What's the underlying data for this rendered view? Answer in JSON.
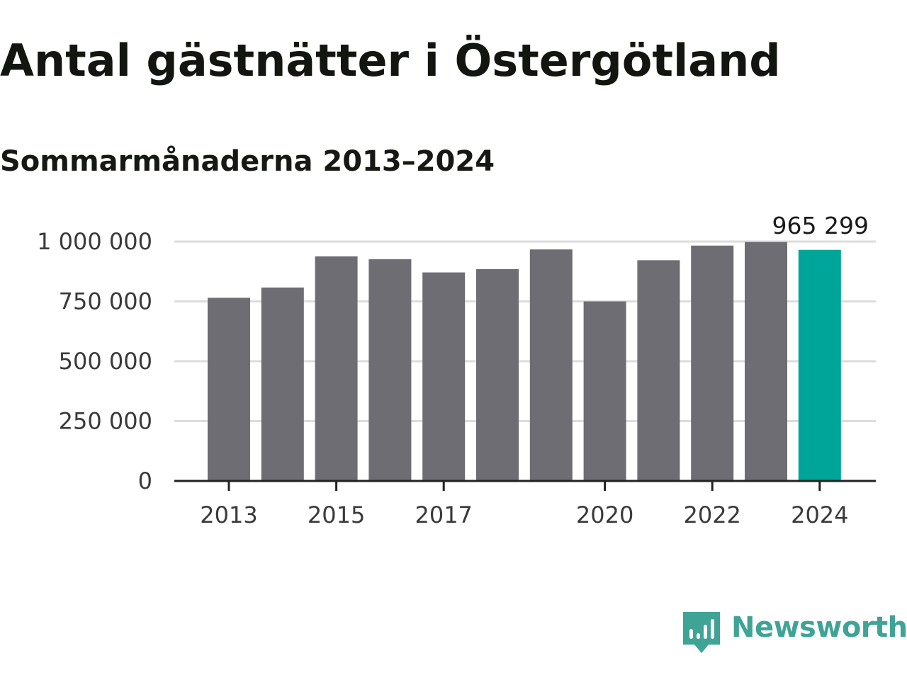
{
  "header": {
    "title": "Antal gästnätter i Östergötland",
    "subtitle": "Sommarmånaderna 2013–2024"
  },
  "brand": {
    "name": "Newsworthy",
    "icon": "bar-chart-speech-bubble-icon",
    "color": "#3fa396"
  },
  "colors": {
    "bar": "#6e6d73",
    "highlight": "#00a59a",
    "grid": "#dcdcdc",
    "axis": "#222222"
  },
  "chart_data": {
    "type": "bar",
    "categories": [
      "2013",
      "2014",
      "2015",
      "2016",
      "2017",
      "2018",
      "2019",
      "2020",
      "2021",
      "2022",
      "2023",
      "2024"
    ],
    "values": [
      765000,
      808000,
      938000,
      926000,
      871000,
      885000,
      967000,
      750000,
      922000,
      983000,
      998000,
      965299
    ],
    "x_tick_labels": [
      "2013",
      "",
      "2015",
      "",
      "2017",
      "",
      "",
      "2020",
      "",
      "2022",
      "",
      "2024"
    ],
    "y_ticks": [
      0,
      250000,
      500000,
      750000,
      1000000
    ],
    "y_tick_labels": [
      "0",
      "250 000",
      "500 000",
      "750 000",
      "1 000 000"
    ],
    "ylim": [
      0,
      1000000
    ],
    "highlight_index": 11,
    "annotations": [
      {
        "category": "2024",
        "label": "965 299"
      }
    ],
    "grid": true,
    "legend": "none",
    "xlabel": "",
    "ylabel": ""
  }
}
